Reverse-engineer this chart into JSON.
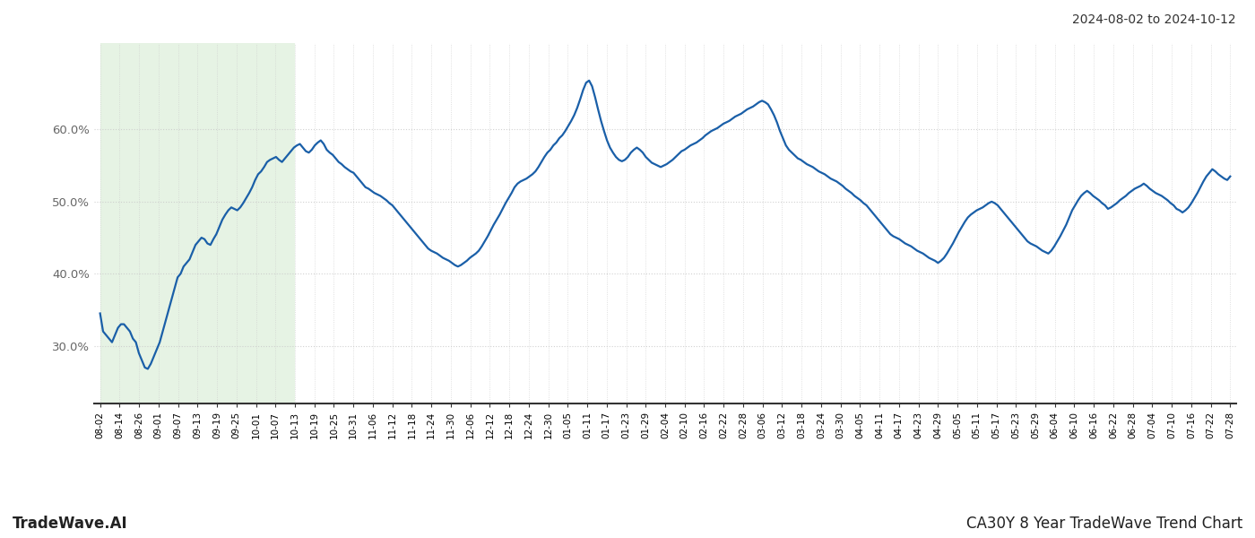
{
  "title_top_right": "2024-08-02 to 2024-10-12",
  "footer_left": "TradeWave.AI",
  "footer_right": "CA30Y 8 Year TradeWave Trend Chart",
  "line_color": "#1a5fa8",
  "line_width": 1.6,
  "shade_color": "#d6ecd2",
  "shade_alpha": 0.6,
  "background_color": "#ffffff",
  "grid_color": "#cccccc",
  "ylim_lo": 0.22,
  "ylim_hi": 0.72,
  "yticks": [
    0.3,
    0.4,
    0.5,
    0.6
  ],
  "shade_start_label": "08-02",
  "shade_end_label": "10-13",
  "x_tick_labels": [
    "08-02",
    "08-14",
    "08-26",
    "09-01",
    "09-07",
    "09-13",
    "09-19",
    "09-25",
    "10-01",
    "10-07",
    "10-13",
    "10-19",
    "10-25",
    "10-31",
    "11-06",
    "11-12",
    "11-18",
    "11-24",
    "11-30",
    "12-06",
    "12-12",
    "12-18",
    "12-24",
    "12-30",
    "01-05",
    "01-11",
    "01-17",
    "01-23",
    "01-29",
    "02-04",
    "02-10",
    "02-16",
    "02-22",
    "02-28",
    "03-06",
    "03-12",
    "03-18",
    "03-24",
    "03-30",
    "04-05",
    "04-11",
    "04-17",
    "04-23",
    "04-29",
    "05-05",
    "05-11",
    "05-17",
    "05-23",
    "05-29",
    "06-04",
    "06-10",
    "06-16",
    "06-22",
    "06-28",
    "07-04",
    "07-10",
    "07-16",
    "07-22",
    "07-28"
  ],
  "y_values": [
    0.345,
    0.32,
    0.315,
    0.31,
    0.305,
    0.315,
    0.325,
    0.33,
    0.33,
    0.325,
    0.32,
    0.31,
    0.305,
    0.29,
    0.28,
    0.27,
    0.268,
    0.275,
    0.285,
    0.295,
    0.305,
    0.32,
    0.335,
    0.35,
    0.365,
    0.38,
    0.395,
    0.4,
    0.41,
    0.415,
    0.42,
    0.43,
    0.44,
    0.445,
    0.45,
    0.448,
    0.442,
    0.44,
    0.448,
    0.455,
    0.465,
    0.475,
    0.482,
    0.488,
    0.492,
    0.49,
    0.488,
    0.492,
    0.498,
    0.505,
    0.512,
    0.52,
    0.53,
    0.538,
    0.542,
    0.548,
    0.555,
    0.558,
    0.56,
    0.562,
    0.558,
    0.555,
    0.56,
    0.565,
    0.57,
    0.575,
    0.578,
    0.58,
    0.575,
    0.57,
    0.568,
    0.572,
    0.578,
    0.582,
    0.585,
    0.58,
    0.572,
    0.568,
    0.565,
    0.56,
    0.555,
    0.552,
    0.548,
    0.545,
    0.542,
    0.54,
    0.535,
    0.53,
    0.525,
    0.52,
    0.518,
    0.515,
    0.512,
    0.51,
    0.508,
    0.505,
    0.502,
    0.498,
    0.495,
    0.49,
    0.485,
    0.48,
    0.475,
    0.47,
    0.465,
    0.46,
    0.455,
    0.45,
    0.445,
    0.44,
    0.435,
    0.432,
    0.43,
    0.428,
    0.425,
    0.422,
    0.42,
    0.418,
    0.415,
    0.412,
    0.41,
    0.412,
    0.415,
    0.418,
    0.422,
    0.425,
    0.428,
    0.432,
    0.438,
    0.445,
    0.452,
    0.46,
    0.468,
    0.475,
    0.482,
    0.49,
    0.498,
    0.505,
    0.512,
    0.52,
    0.525,
    0.528,
    0.53,
    0.532,
    0.535,
    0.538,
    0.542,
    0.548,
    0.555,
    0.562,
    0.568,
    0.572,
    0.578,
    0.582,
    0.588,
    0.592,
    0.598,
    0.605,
    0.612,
    0.62,
    0.63,
    0.642,
    0.655,
    0.665,
    0.668,
    0.66,
    0.645,
    0.628,
    0.612,
    0.598,
    0.585,
    0.575,
    0.568,
    0.562,
    0.558,
    0.556,
    0.558,
    0.562,
    0.568,
    0.572,
    0.575,
    0.572,
    0.568,
    0.562,
    0.558,
    0.554,
    0.552,
    0.55,
    0.548,
    0.55,
    0.552,
    0.555,
    0.558,
    0.562,
    0.566,
    0.57,
    0.572,
    0.575,
    0.578,
    0.58,
    0.582,
    0.585,
    0.588,
    0.592,
    0.595,
    0.598,
    0.6,
    0.602,
    0.605,
    0.608,
    0.61,
    0.612,
    0.615,
    0.618,
    0.62,
    0.622,
    0.625,
    0.628,
    0.63,
    0.632,
    0.635,
    0.638,
    0.64,
    0.638,
    0.635,
    0.628,
    0.62,
    0.61,
    0.598,
    0.588,
    0.578,
    0.572,
    0.568,
    0.564,
    0.56,
    0.558,
    0.555,
    0.552,
    0.55,
    0.548,
    0.545,
    0.542,
    0.54,
    0.538,
    0.535,
    0.532,
    0.53,
    0.528,
    0.525,
    0.522,
    0.518,
    0.515,
    0.512,
    0.508,
    0.505,
    0.502,
    0.498,
    0.495,
    0.49,
    0.485,
    0.48,
    0.475,
    0.47,
    0.465,
    0.46,
    0.455,
    0.452,
    0.45,
    0.448,
    0.445,
    0.442,
    0.44,
    0.438,
    0.435,
    0.432,
    0.43,
    0.428,
    0.425,
    0.422,
    0.42,
    0.418,
    0.415,
    0.418,
    0.422,
    0.428,
    0.435,
    0.442,
    0.45,
    0.458,
    0.465,
    0.472,
    0.478,
    0.482,
    0.485,
    0.488,
    0.49,
    0.492,
    0.495,
    0.498,
    0.5,
    0.498,
    0.495,
    0.49,
    0.485,
    0.48,
    0.475,
    0.47,
    0.465,
    0.46,
    0.455,
    0.45,
    0.445,
    0.442,
    0.44,
    0.438,
    0.435,
    0.432,
    0.43,
    0.428,
    0.432,
    0.438,
    0.445,
    0.452,
    0.46,
    0.468,
    0.478,
    0.488,
    0.495,
    0.502,
    0.508,
    0.512,
    0.515,
    0.512,
    0.508,
    0.505,
    0.502,
    0.498,
    0.495,
    0.49,
    0.492,
    0.495,
    0.498,
    0.502,
    0.505,
    0.508,
    0.512,
    0.515,
    0.518,
    0.52,
    0.522,
    0.525,
    0.522,
    0.518,
    0.515,
    0.512,
    0.51,
    0.508,
    0.505,
    0.502,
    0.498,
    0.495,
    0.49,
    0.488,
    0.485,
    0.488,
    0.492,
    0.498,
    0.505,
    0.512,
    0.52,
    0.528,
    0.535,
    0.54,
    0.545,
    0.542,
    0.538,
    0.535,
    0.532,
    0.53,
    0.535
  ]
}
